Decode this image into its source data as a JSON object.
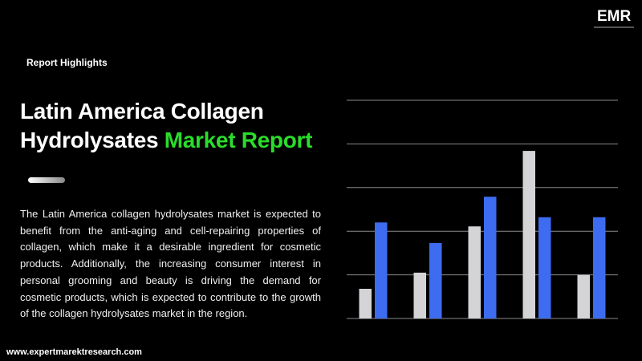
{
  "logo": "EMR",
  "kicker": "Report Highlights",
  "title": {
    "line1": "Latin America Collagen",
    "line2_plain": "Hydrolysates",
    "line2_accent": "Market Report"
  },
  "description": "The Latin America collagen hydrolysates market is expected to benefit from the anti-aging and cell-repairing properties of collagen, which make it a desirable ingredient for cosmetic products. Additionally, the increasing consumer interest in personal grooming and beauty is driving the demand for cosmetic products, which is expected to contribute to the growth of the collagen hydrolysates market in the region.",
  "footer": "www.expertmarektresearch.com",
  "chart_data": {
    "type": "bar",
    "series": [
      {
        "color": "#d4d4d6",
        "values": [
          0.68,
          1.05,
          2.11,
          3.84,
          1.0
        ]
      },
      {
        "color": "#3d6cf0",
        "values": [
          2.2,
          1.73,
          2.79,
          2.32,
          2.32
        ]
      }
    ],
    "ylim": [
      0,
      5
    ],
    "yticks": [
      0,
      1,
      2,
      3,
      4,
      5
    ],
    "grid": true
  }
}
